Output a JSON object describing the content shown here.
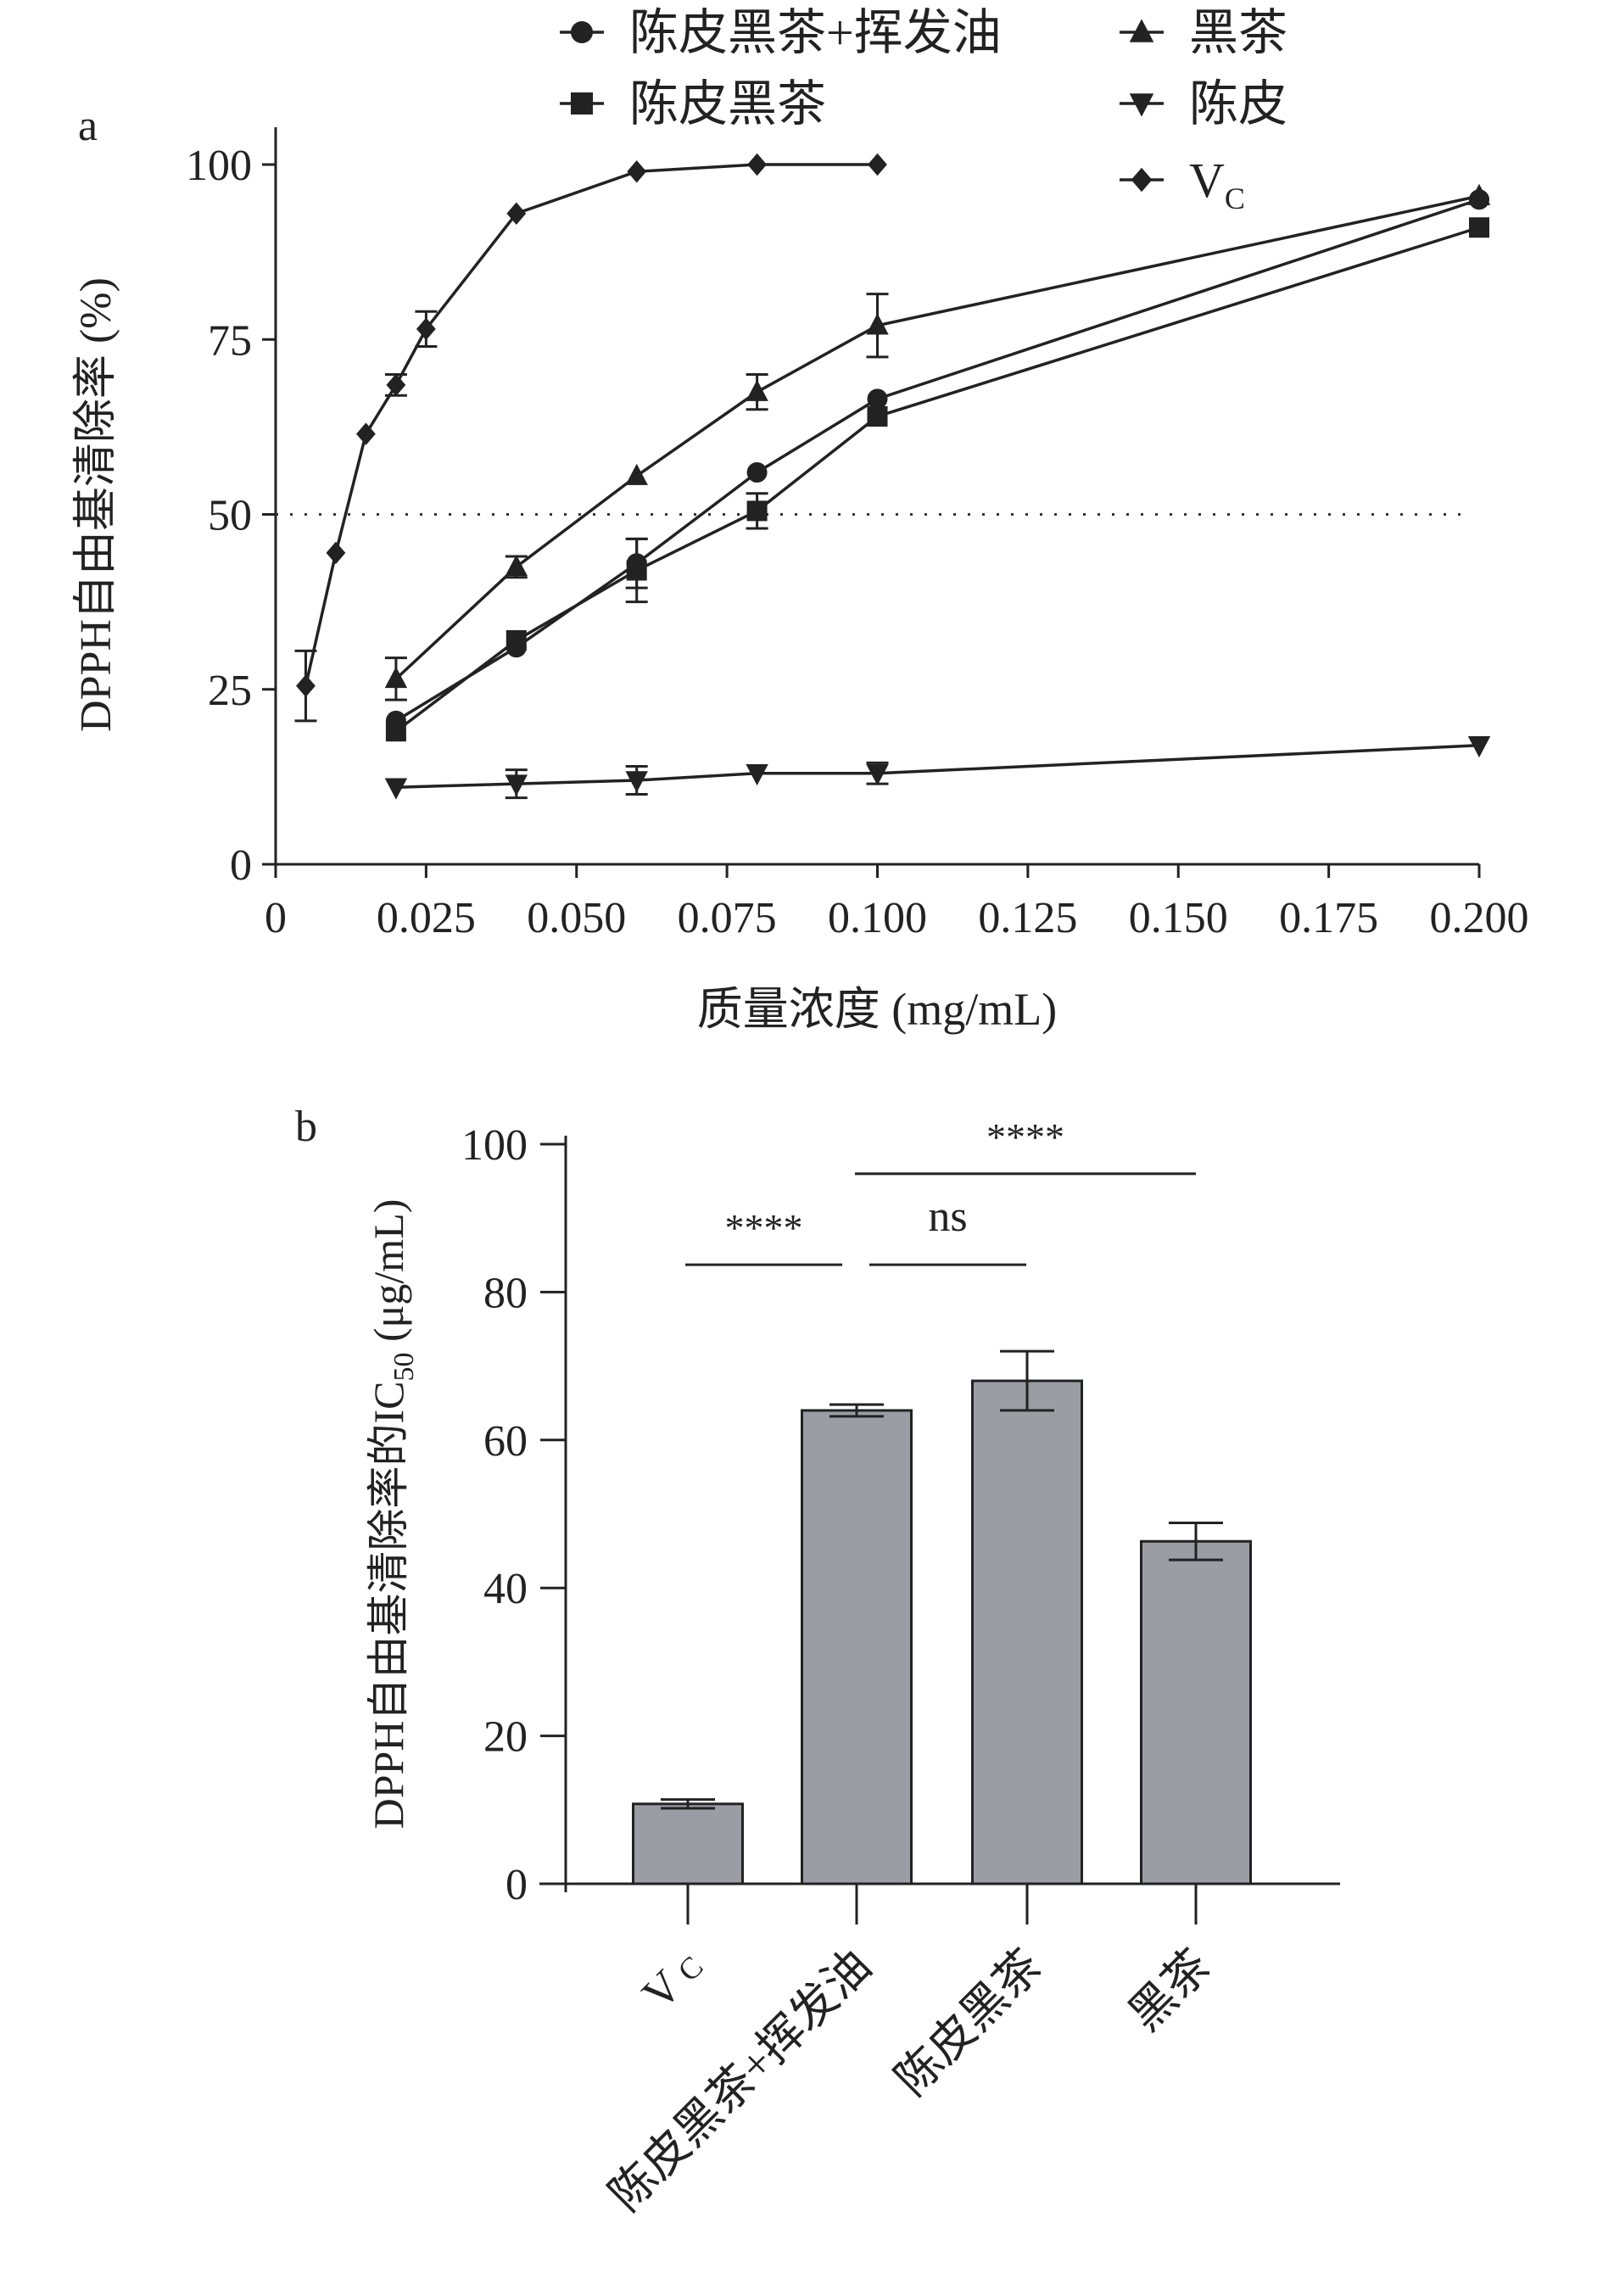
{
  "chart_data": [
    {
      "type": "line",
      "panel_label": "a",
      "xlabel": "质量浓度 (mg/mL)",
      "ylabel": "DPPH自由基清除率 (%)",
      "xlim": [
        0,
        0.2
      ],
      "ylim": [
        0,
        100
      ],
      "xticks": [
        "0",
        "0.025",
        "0.050",
        "0.075",
        "0.100",
        "0.125",
        "0.150",
        "0.175",
        "0.200"
      ],
      "yticks": [
        "0",
        "25",
        "50",
        "75",
        "100"
      ],
      "reference_line": {
        "y": 50,
        "style": "dotted"
      },
      "legend": "top",
      "series": [
        {
          "name": "陈皮黑茶+挥发油",
          "marker": "circle",
          "x": [
            0.02,
            0.04,
            0.06,
            0.08,
            0.1,
            0.2
          ],
          "y": [
            20.5,
            31,
            43,
            56,
            66.5,
            95
          ],
          "err": [
            0,
            0,
            3.5,
            0,
            0,
            0
          ]
        },
        {
          "name": "陈皮黑茶",
          "marker": "square",
          "x": [
            0.02,
            0.04,
            0.06,
            0.08,
            0.1,
            0.2
          ],
          "y": [
            19,
            32,
            42,
            50.5,
            64,
            91
          ],
          "err": [
            0,
            0,
            4.5,
            2.5,
            0,
            0
          ]
        },
        {
          "name": "黑茶",
          "marker": "triangle-up",
          "x": [
            0.02,
            0.04,
            0.06,
            0.08,
            0.1,
            0.2
          ],
          "y": [
            26.5,
            42.5,
            55.5,
            67.5,
            77,
            95.5
          ],
          "err": [
            3,
            1.5,
            0,
            2.5,
            4.5,
            0
          ]
        },
        {
          "name": "陈皮",
          "marker": "triangle-down",
          "x": [
            0.02,
            0.04,
            0.06,
            0.08,
            0.1,
            0.2
          ],
          "y": [
            11,
            11.5,
            12,
            13,
            13,
            17
          ],
          "err": [
            0,
            2,
            2,
            0,
            1.5,
            0
          ]
        },
        {
          "name": "V",
          "name_sub": "C",
          "marker": "diamond",
          "x": [
            0.005,
            0.01,
            0.015,
            0.02,
            0.025,
            0.04,
            0.06,
            0.08,
            0.1
          ],
          "y": [
            25.5,
            44.5,
            61.5,
            68.5,
            76.5,
            93,
            99,
            100,
            100
          ],
          "err": [
            5,
            0,
            0,
            1.5,
            2.5,
            0,
            0,
            0,
            0
          ]
        }
      ]
    },
    {
      "type": "bar",
      "panel_label": "b",
      "ylabel": "DPPH自由基清除率的IC",
      "ylabel_sub": "50",
      "ylabel_unit": " (μg/mL)",
      "ylim": [
        0,
        100
      ],
      "yticks": [
        "0",
        "20",
        "40",
        "60",
        "80",
        "100"
      ],
      "categories": [
        "V",
        "陈皮黑茶+挥发油",
        "陈皮黑茶",
        "黑茶"
      ],
      "category_sub": [
        "C",
        "",
        "",
        ""
      ],
      "values": [
        10.8,
        64,
        68,
        46.3
      ],
      "err": [
        0.6,
        0.8,
        4,
        2.5
      ],
      "bar_color": "#9b9ca4",
      "significance": [
        {
          "from": 0,
          "to": 1,
          "y": 83.7,
          "label": "****"
        },
        {
          "from": 1,
          "to": 2,
          "y": 83.7,
          "label": "ns"
        },
        {
          "from": 1,
          "to": 3,
          "y": 96,
          "label": "****"
        }
      ]
    }
  ]
}
